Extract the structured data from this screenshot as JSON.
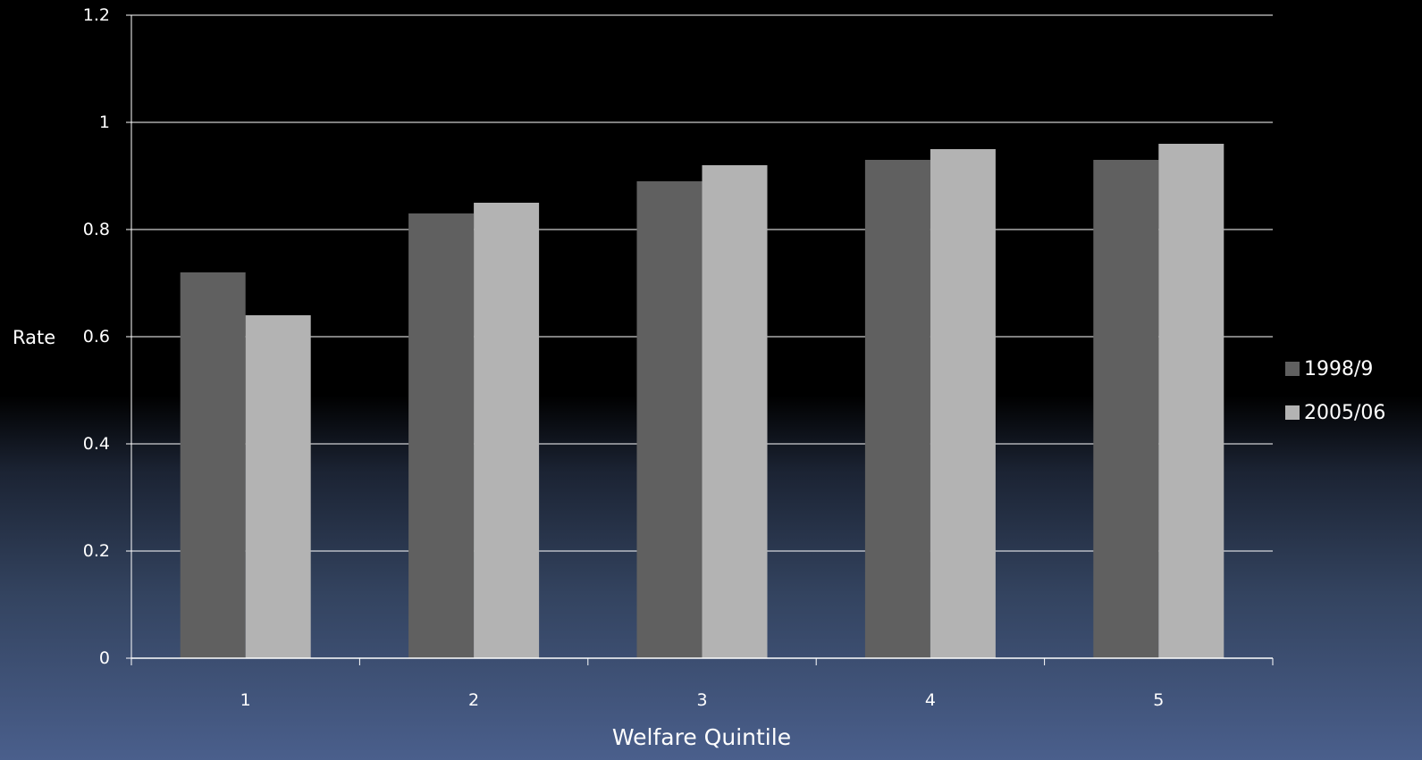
{
  "chart_data": {
    "type": "bar",
    "title": "",
    "xlabel": "Welfare Quintile",
    "ylabel": "Rate",
    "categories": [
      "1",
      "2",
      "3",
      "4",
      "5"
    ],
    "series": [
      {
        "name": "1998/9",
        "values": [
          0.72,
          0.83,
          0.89,
          0.93,
          0.93
        ],
        "color": "#606060"
      },
      {
        "name": "2005/06",
        "values": [
          0.64,
          0.85,
          0.92,
          0.95,
          0.96
        ],
        "color": "#b3b3b3"
      }
    ],
    "ylim": [
      0,
      1.2
    ],
    "yticks": [
      "0",
      "0.2",
      "0.4",
      "0.6",
      "0.8",
      "1",
      "1.2"
    ],
    "ytick_values": [
      0,
      0.2,
      0.4,
      0.6,
      0.8,
      1.0,
      1.2
    ],
    "grid": true,
    "legend_position": "right",
    "colors": {
      "gridline": "#ffffff",
      "axis": "#ffffff",
      "text": "#ffffff"
    }
  }
}
